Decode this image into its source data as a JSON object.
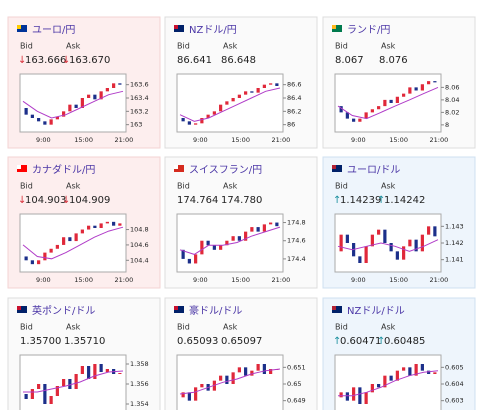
{
  "labels": {
    "bid": "Bid",
    "ask": "Ask"
  },
  "arrows": {
    "up": "↑",
    "down": "↓"
  },
  "xticks": [
    "9:00",
    "15:00",
    "21:00"
  ],
  "cards": [
    {
      "title": "ユーロ/円",
      "bid": "163.666",
      "ask": "163.670",
      "trend": "down",
      "ylim": [
        162.95,
        163.7
      ],
      "yticks": [
        163,
        163.2,
        163.4,
        163.6
      ],
      "closes": [
        163.25,
        163.15,
        163.1,
        163.05,
        163.0,
        163.08,
        163.12,
        163.2,
        163.3,
        163.25,
        163.4,
        163.45,
        163.38,
        163.5,
        163.55,
        163.62,
        163.6
      ],
      "ma": [
        163.35,
        163.2,
        163.1,
        163.15,
        163.25,
        163.35,
        163.45,
        163.5
      ]
    },
    {
      "title": "NZドル/円",
      "bid": "86.641",
      "ask": "86.648",
      "trend": null,
      "ylim": [
        85.95,
        86.7
      ],
      "yticks": [
        86,
        86.2,
        86.4,
        86.6
      ],
      "closes": [
        86.1,
        86.05,
        86.0,
        86.02,
        86.1,
        86.15,
        86.2,
        86.3,
        86.35,
        86.4,
        86.45,
        86.5,
        86.48,
        86.55,
        86.6,
        86.62,
        86.58
      ],
      "ma": [
        86.15,
        86.05,
        86.1,
        86.2,
        86.3,
        86.4,
        86.5,
        86.55
      ]
    },
    {
      "title": "ランド/円",
      "bid": "8.067",
      "ask": "8.076",
      "trend": null,
      "ylim": [
        7.995,
        8.075
      ],
      "yticks": [
        8,
        8.02,
        8.04,
        8.06
      ],
      "closes": [
        8.03,
        8.02,
        8.01,
        8.005,
        8.01,
        8.02,
        8.025,
        8.03,
        8.04,
        8.035,
        8.045,
        8.05,
        8.06,
        8.055,
        8.065,
        8.07,
        8.068
      ],
      "ma": [
        8.03,
        8.015,
        8.01,
        8.02,
        8.03,
        8.04,
        8.05,
        8.06
      ]
    },
    {
      "title": "カナダドル/円",
      "bid": "104.903",
      "ask": "104.909",
      "trend": "down",
      "ylim": [
        104.3,
        104.95
      ],
      "yticks": [
        104.4,
        104.6,
        104.8
      ],
      "closes": [
        104.45,
        104.4,
        104.35,
        104.4,
        104.5,
        104.55,
        104.6,
        104.7,
        104.65,
        104.75,
        104.8,
        104.85,
        104.82,
        104.88,
        104.9,
        104.85,
        104.88
      ],
      "ma": [
        104.6,
        104.45,
        104.42,
        104.5,
        104.6,
        104.7,
        104.78,
        104.83
      ]
    },
    {
      "title": "スイスフラン/円",
      "bid": "174.764",
      "ask": "174.780",
      "trend": null,
      "ylim": [
        174.3,
        174.85
      ],
      "yticks": [
        174.4,
        174.6,
        174.8
      ],
      "closes": [
        174.5,
        174.4,
        174.35,
        174.45,
        174.6,
        174.55,
        174.5,
        174.55,
        174.6,
        174.65,
        174.6,
        174.7,
        174.75,
        174.7,
        174.78,
        174.8,
        174.76
      ],
      "ma": [
        174.5,
        174.45,
        174.55,
        174.55,
        174.58,
        174.65,
        174.7,
        174.75
      ]
    },
    {
      "title": "ユーロ/ドル",
      "bid": "1.14239",
      "ask": "1.14242",
      "trend": "up",
      "ylim": [
        1.1405,
        1.1435
      ],
      "yticks": [
        1.141,
        1.142,
        1.143
      ],
      "closes": [
        1.1415,
        1.1425,
        1.142,
        1.1412,
        1.1408,
        1.1418,
        1.1425,
        1.1428,
        1.142,
        1.1415,
        1.141,
        1.1418,
        1.1422,
        1.1415,
        1.1425,
        1.143,
        1.1424
      ],
      "ma": [
        1.1418,
        1.1416,
        1.1418,
        1.142,
        1.1418,
        1.1415,
        1.1418,
        1.1422
      ]
    },
    {
      "title": "英ポンド/ドル",
      "bid": "1.35700",
      "ask": "1.35710",
      "trend": null,
      "ylim": [
        1.3535,
        1.3585
      ],
      "yticks": [
        1.354,
        1.356,
        1.358
      ],
      "closes": [
        1.355,
        1.3545,
        1.3555,
        1.356,
        1.354,
        1.3548,
        1.3558,
        1.3565,
        1.3555,
        1.357,
        1.3578,
        1.3565,
        1.358,
        1.3572,
        1.3575,
        1.357,
        1.3571
      ],
      "ma": [
        1.3552,
        1.3552,
        1.3555,
        1.3558,
        1.3562,
        1.3568,
        1.3572,
        1.3573
      ]
    },
    {
      "title": "豪ドル/ドル",
      "bid": "0.65093",
      "ask": "0.65097",
      "trend": null,
      "ylim": [
        0.6485,
        0.6515
      ],
      "yticks": [
        0.649,
        0.65,
        0.651
      ],
      "closes": [
        0.6492,
        0.6495,
        0.649,
        0.6498,
        0.65,
        0.6496,
        0.6502,
        0.6505,
        0.65,
        0.6507,
        0.651,
        0.6505,
        0.6508,
        0.6512,
        0.6506,
        0.6509,
        0.6509
      ],
      "ma": [
        0.6494,
        0.6495,
        0.6498,
        0.6501,
        0.6503,
        0.6506,
        0.6508,
        0.6509
      ]
    },
    {
      "title": "NZドル/ドル",
      "bid": "0.60471",
      "ask": "0.60485",
      "trend": "up",
      "ylim": [
        0.6025,
        0.6055
      ],
      "yticks": [
        0.603,
        0.604,
        0.605
      ],
      "closes": [
        0.6032,
        0.6035,
        0.603,
        0.6038,
        0.6028,
        0.6035,
        0.604,
        0.6038,
        0.6045,
        0.6042,
        0.6048,
        0.605,
        0.6045,
        0.6052,
        0.6048,
        0.6046,
        0.6047
      ],
      "ma": [
        0.6033,
        0.6033,
        0.6035,
        0.6038,
        0.6042,
        0.6045,
        0.6047,
        0.6048
      ]
    }
  ]
}
